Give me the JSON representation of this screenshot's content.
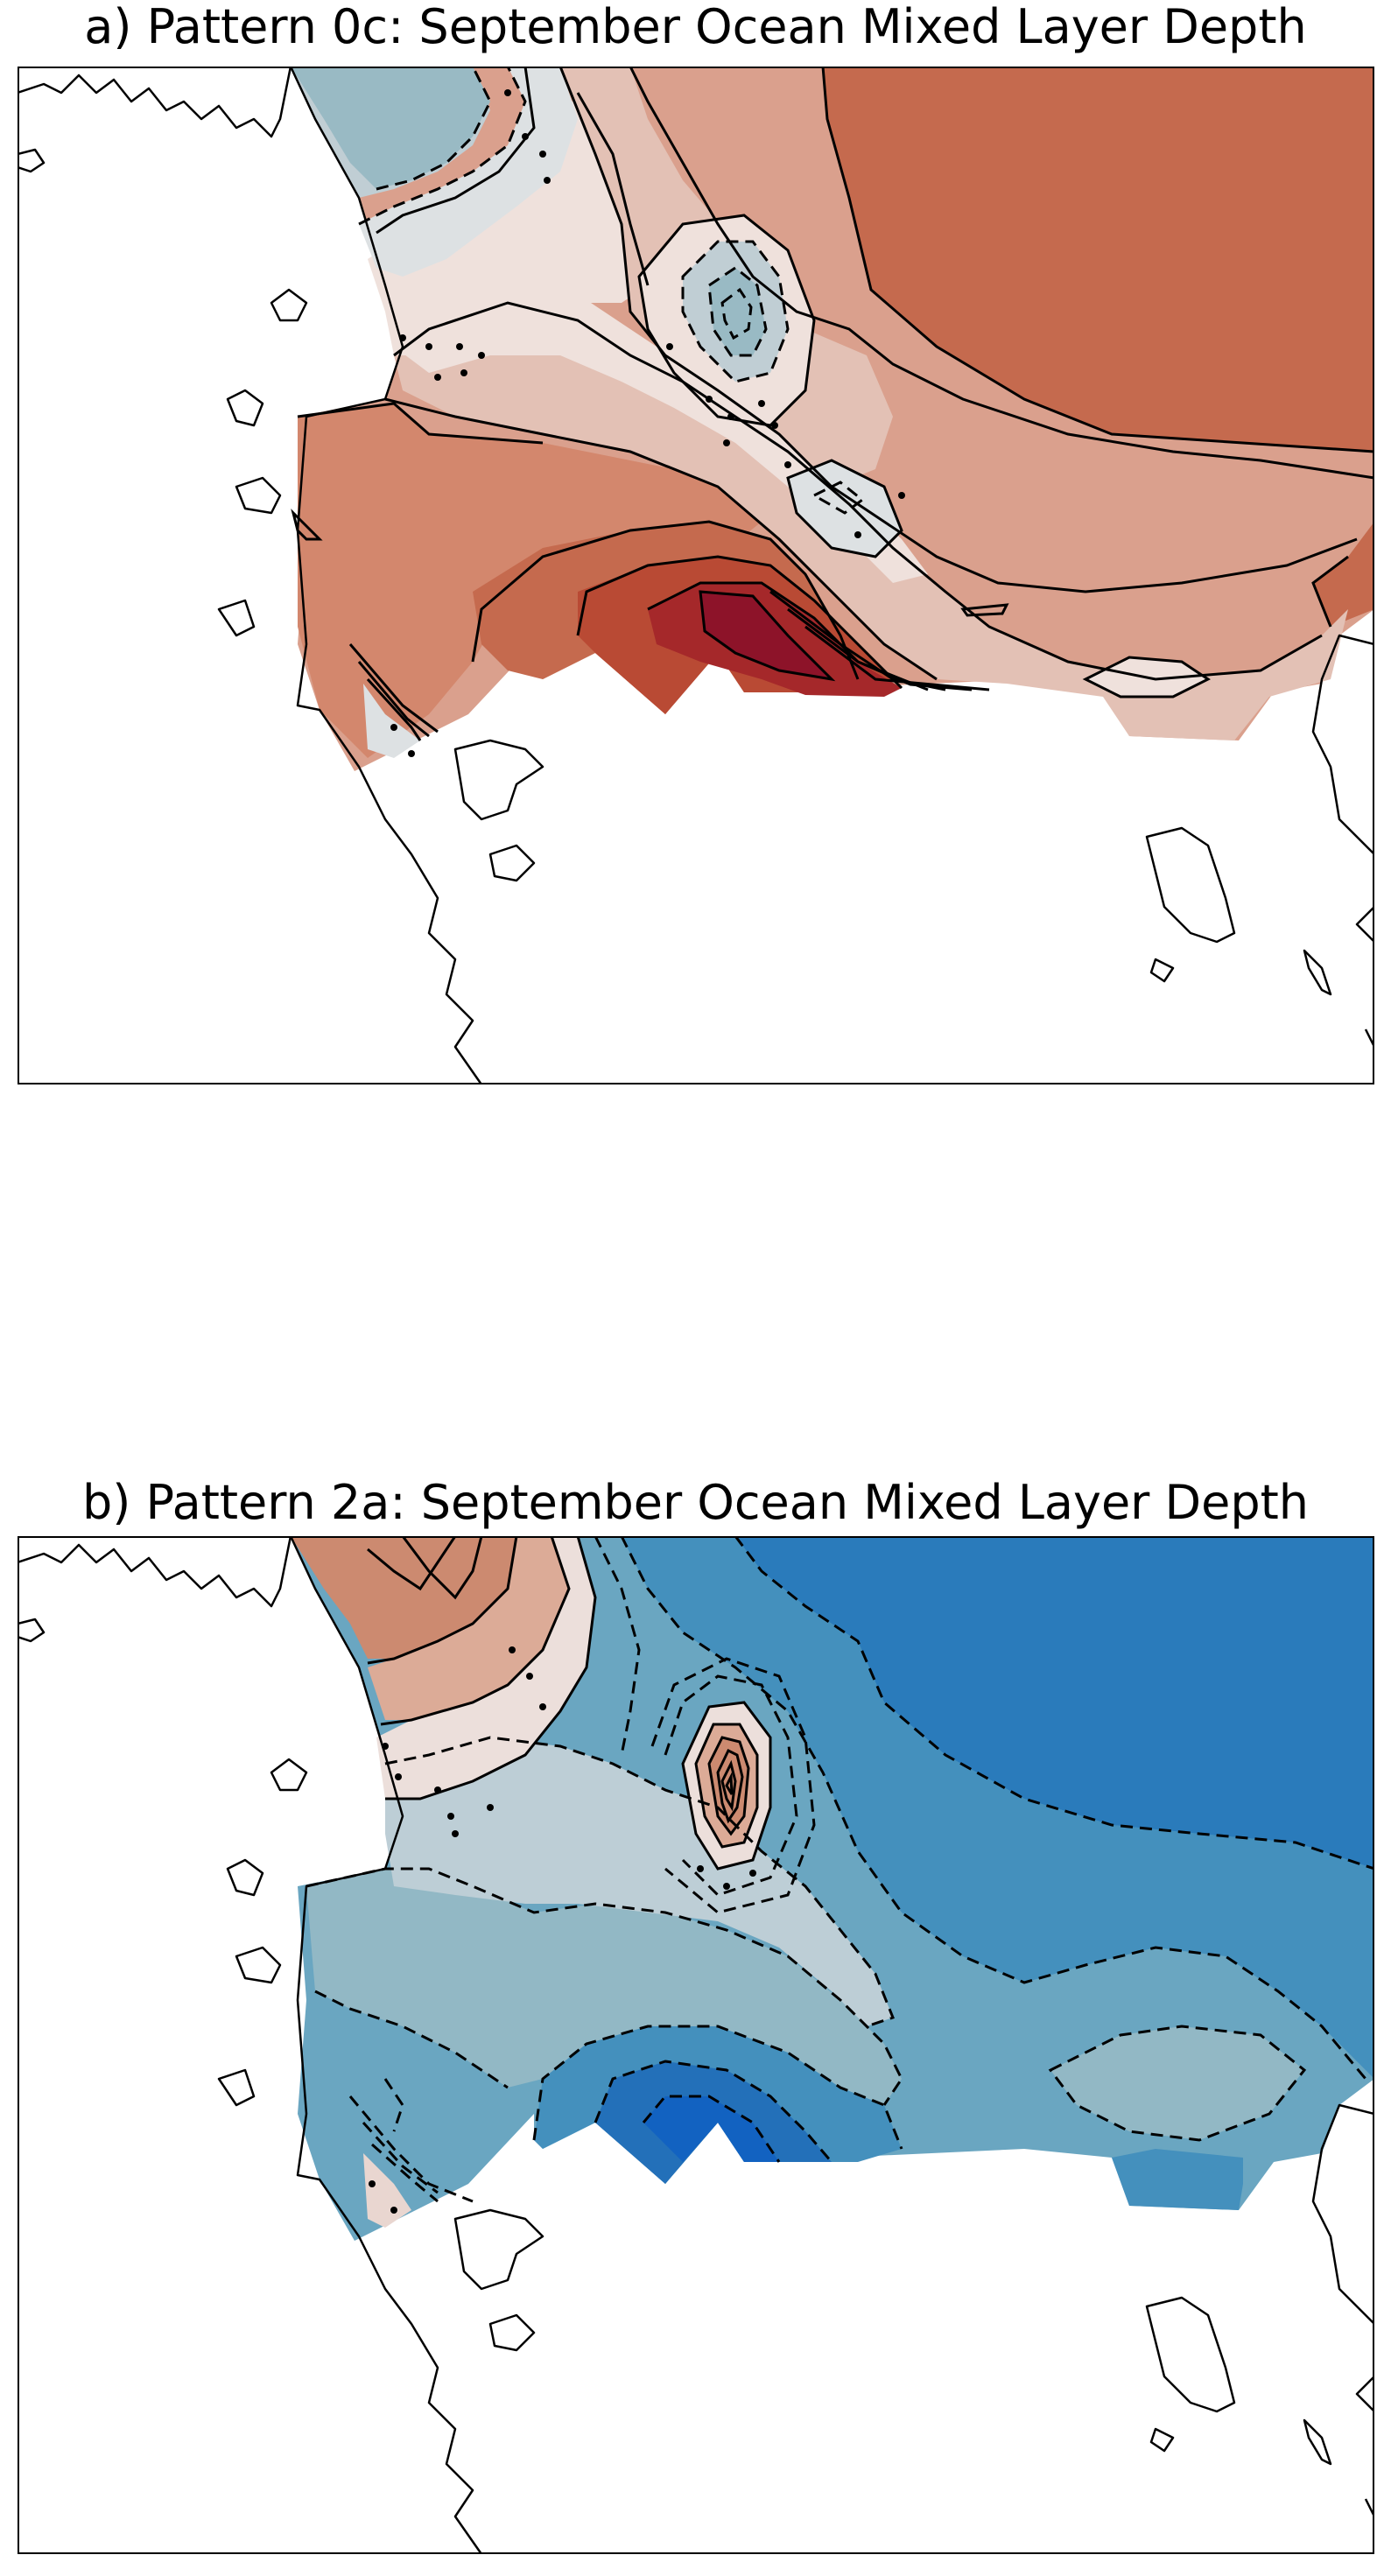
{
  "panels": [
    {
      "id": "a",
      "title": "a) Pattern 0c: September Ocean Mixed Layer Depth",
      "palette": [
        "#c56a4e",
        "#d3876d",
        "#daa08d",
        "#e3c1b5",
        "#efe1dc",
        "#dde1e3",
        "#c0ced4",
        "#99bac4",
        "#b94a34",
        "#a5282a",
        "#8d1329"
      ]
    },
    {
      "id": "b",
      "title": "b) Pattern 2a: September Ocean Mixed Layer Depth",
      "palette": [
        "#2a7bbb",
        "#4490bd",
        "#6aa6c1",
        "#92b8c5",
        "#bdced6",
        "#ecdfdb",
        "#dcab97",
        "#cc8a70",
        "#2370b9",
        "#1262c1",
        "#e9d6d0"
      ]
    }
  ],
  "colors": {
    "contour": "#000000",
    "coast": "#000000",
    "background": "#ffffff"
  }
}
